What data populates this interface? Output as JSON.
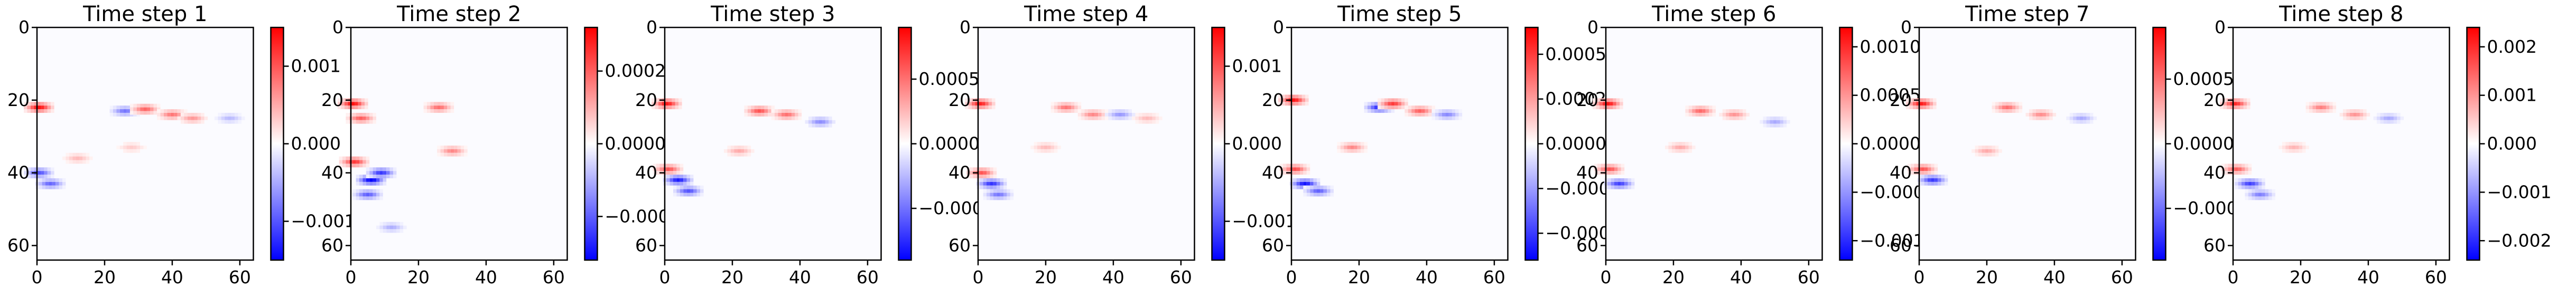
{
  "chart_data": [
    {
      "type": "heatmap",
      "title": "Time step 1",
      "xlabel": "",
      "ylabel": "",
      "x_ticks": [
        "0",
        "20",
        "40",
        "60"
      ],
      "y_ticks": [
        "0",
        "20",
        "40",
        "60"
      ],
      "xlim": [
        0,
        64
      ],
      "ylim": [
        64,
        0
      ],
      "colormap": "bwr",
      "colorbar": {
        "vmin": -0.0015,
        "vmax": 0.0015,
        "ticks": [
          {
            "value": 0.001,
            "label": "0.001"
          },
          {
            "value": 0.0,
            "label": "0.000"
          },
          {
            "value": -0.001,
            "label": "−0.001"
          }
        ]
      },
      "features": [
        {
          "x": 0.6,
          "y": 22.0,
          "value": 0.0014
        },
        {
          "x": 0.6,
          "y": 40.0,
          "value": -0.001
        },
        {
          "x": 4.0,
          "y": 43.0,
          "value": -0.0009
        },
        {
          "x": 26.0,
          "y": 23.0,
          "value": -0.0008
        },
        {
          "x": 32.0,
          "y": 22.5,
          "value": 0.0009
        },
        {
          "x": 40.0,
          "y": 24.0,
          "value": 0.0008
        },
        {
          "x": 46.0,
          "y": 25.0,
          "value": 0.0006
        },
        {
          "x": 57.0,
          "y": 25.0,
          "value": -0.0004
        },
        {
          "x": 12.0,
          "y": 36.0,
          "value": 0.0004
        },
        {
          "x": 28.0,
          "y": 33.0,
          "value": 0.0003
        }
      ]
    },
    {
      "type": "heatmap",
      "title": "Time step 2",
      "xlabel": "",
      "ylabel": "",
      "x_ticks": [
        "0",
        "20",
        "40",
        "60"
      ],
      "y_ticks": [
        "0",
        "20",
        "40",
        "60"
      ],
      "xlim": [
        0,
        64
      ],
      "ylim": [
        64,
        0
      ],
      "colormap": "bwr",
      "colorbar": {
        "vmin": -0.00032,
        "vmax": 0.00032,
        "ticks": [
          {
            "value": 0.0002,
            "label": "0.0002"
          },
          {
            "value": 0.0,
            "label": "0.0000"
          },
          {
            "value": -0.0002,
            "label": "−0.0002"
          }
        ]
      },
      "features": [
        {
          "x": 0.6,
          "y": 21.0,
          "value": 0.0003
        },
        {
          "x": 3.0,
          "y": 25.0,
          "value": 0.0002
        },
        {
          "x": 1.0,
          "y": 37.0,
          "value": 0.00025
        },
        {
          "x": 6.0,
          "y": 42.0,
          "value": -0.00032
        },
        {
          "x": 9.0,
          "y": 40.0,
          "value": -0.00025
        },
        {
          "x": 5.0,
          "y": 46.0,
          "value": -0.0002
        },
        {
          "x": 26.0,
          "y": 22.0,
          "value": 0.00018
        },
        {
          "x": 30.0,
          "y": 34.0,
          "value": 0.00015
        },
        {
          "x": 12.0,
          "y": 55.0,
          "value": -0.0001
        }
      ]
    },
    {
      "type": "heatmap",
      "title": "Time step 3",
      "xlabel": "",
      "ylabel": "",
      "x_ticks": [
        "0",
        "20",
        "40",
        "60"
      ],
      "y_ticks": [
        "0",
        "20",
        "40",
        "60"
      ],
      "xlim": [
        0,
        64
      ],
      "ylim": [
        64,
        0
      ],
      "colormap": "bwr",
      "colorbar": {
        "vmin": -0.0009,
        "vmax": 0.0009,
        "ticks": [
          {
            "value": 0.0005,
            "label": "0.0005"
          },
          {
            "value": 0.0,
            "label": "0.0000"
          },
          {
            "value": -0.0005,
            "label": "−0.0005"
          }
        ]
      },
      "features": [
        {
          "x": 0.6,
          "y": 21.0,
          "value": 0.0008
        },
        {
          "x": 1.0,
          "y": 39.0,
          "value": 0.0006
        },
        {
          "x": 4.0,
          "y": 42.0,
          "value": -0.0008
        },
        {
          "x": 7.0,
          "y": 45.0,
          "value": -0.0006
        },
        {
          "x": 28.0,
          "y": 23.0,
          "value": 0.0006
        },
        {
          "x": 36.0,
          "y": 24.0,
          "value": 0.0005
        },
        {
          "x": 46.0,
          "y": 26.0,
          "value": -0.0004
        },
        {
          "x": 22.0,
          "y": 34.0,
          "value": 0.0003
        }
      ]
    },
    {
      "type": "heatmap",
      "title": "Time step 4",
      "xlabel": "",
      "ylabel": "",
      "x_ticks": [
        "0",
        "20",
        "40",
        "60"
      ],
      "y_ticks": [
        "0",
        "20",
        "40",
        "60"
      ],
      "xlim": [
        0,
        64
      ],
      "ylim": [
        64,
        0
      ],
      "colormap": "bwr",
      "colorbar": {
        "vmin": -0.0015,
        "vmax": 0.0015,
        "ticks": [
          {
            "value": 0.001,
            "label": "0.001"
          },
          {
            "value": 0.0,
            "label": "0.000"
          },
          {
            "value": -0.001,
            "label": "−0.001"
          }
        ]
      },
      "features": [
        {
          "x": 0.6,
          "y": 21.0,
          "value": 0.0013
        },
        {
          "x": 1.0,
          "y": 40.0,
          "value": 0.001
        },
        {
          "x": 4.0,
          "y": 43.0,
          "value": -0.0012
        },
        {
          "x": 6.0,
          "y": 46.0,
          "value": -0.0008
        },
        {
          "x": 26.0,
          "y": 22.0,
          "value": 0.0008
        },
        {
          "x": 34.0,
          "y": 24.0,
          "value": 0.0007
        },
        {
          "x": 42.0,
          "y": 24.0,
          "value": -0.0006
        },
        {
          "x": 50.0,
          "y": 25.0,
          "value": 0.0004
        },
        {
          "x": 20.0,
          "y": 33.0,
          "value": 0.0004
        }
      ]
    },
    {
      "type": "heatmap",
      "title": "Time step 5",
      "xlabel": "",
      "ylabel": "",
      "x_ticks": [
        "0",
        "20",
        "40",
        "60"
      ],
      "y_ticks": [
        "0",
        "20",
        "40",
        "60"
      ],
      "xlim": [
        0,
        64
      ],
      "ylim": [
        64,
        0
      ],
      "colormap": "bwr",
      "colorbar": {
        "vmin": -0.00065,
        "vmax": 0.00065,
        "ticks": [
          {
            "value": 0.0005,
            "label": "0.00050"
          },
          {
            "value": 0.00025,
            "label": "0.00025"
          },
          {
            "value": 0.0,
            "label": "0.00000"
          },
          {
            "value": -0.00025,
            "label": "−0.00025"
          },
          {
            "value": -0.0005,
            "label": "−0.00050"
          }
        ]
      },
      "features": [
        {
          "x": 0.6,
          "y": 20.0,
          "value": 0.0006
        },
        {
          "x": 1.0,
          "y": 39.0,
          "value": 0.00045
        },
        {
          "x": 4.0,
          "y": 43.0,
          "value": -0.0006
        },
        {
          "x": 8.0,
          "y": 45.0,
          "value": -0.0004
        },
        {
          "x": 26.0,
          "y": 22.0,
          "value": -0.00055
        },
        {
          "x": 30.0,
          "y": 21.0,
          "value": 0.0005
        },
        {
          "x": 38.0,
          "y": 23.0,
          "value": 0.0004
        },
        {
          "x": 46.0,
          "y": 24.0,
          "value": -0.0003
        },
        {
          "x": 18.0,
          "y": 33.0,
          "value": 0.0003
        }
      ]
    },
    {
      "type": "heatmap",
      "title": "Time step 6",
      "xlabel": "",
      "ylabel": "",
      "x_ticks": [
        "0",
        "20",
        "40",
        "60"
      ],
      "y_ticks": [
        "0",
        "20",
        "40",
        "60"
      ],
      "xlim": [
        0,
        64
      ],
      "ylim": [
        64,
        0
      ],
      "colormap": "bwr",
      "colorbar": {
        "vmin": -0.0012,
        "vmax": 0.0012,
        "ticks": [
          {
            "value": 0.001,
            "label": "0.0010"
          },
          {
            "value": 0.0005,
            "label": "0.0005"
          },
          {
            "value": 0.0,
            "label": "0.0000"
          },
          {
            "value": -0.0005,
            "label": "−0.0005"
          },
          {
            "value": -0.001,
            "label": "−0.0010"
          }
        ]
      },
      "features": [
        {
          "x": 0.6,
          "y": 21.0,
          "value": 0.0011
        },
        {
          "x": 1.0,
          "y": 39.0,
          "value": 0.0008
        },
        {
          "x": 4.0,
          "y": 43.0,
          "value": -0.0009
        },
        {
          "x": 28.0,
          "y": 23.0,
          "value": 0.0007
        },
        {
          "x": 38.0,
          "y": 24.0,
          "value": 0.0005
        },
        {
          "x": 50.0,
          "y": 26.0,
          "value": -0.0004
        },
        {
          "x": 22.0,
          "y": 33.0,
          "value": 0.0004
        }
      ]
    },
    {
      "type": "heatmap",
      "title": "Time step 7",
      "xlabel": "",
      "ylabel": "",
      "x_ticks": [
        "0",
        "20",
        "40",
        "60"
      ],
      "y_ticks": [
        "0",
        "20",
        "40",
        "60"
      ],
      "xlim": [
        0,
        64
      ],
      "ylim": [
        64,
        0
      ],
      "colormap": "bwr",
      "colorbar": {
        "vmin": -0.0009,
        "vmax": 0.0009,
        "ticks": [
          {
            "value": 0.0005,
            "label": "0.0005"
          },
          {
            "value": 0.0,
            "label": "0.0000"
          },
          {
            "value": -0.0005,
            "label": "−0.0005"
          }
        ]
      },
      "features": [
        {
          "x": 0.6,
          "y": 21.0,
          "value": 0.0008
        },
        {
          "x": 1.0,
          "y": 39.0,
          "value": 0.0006
        },
        {
          "x": 4.0,
          "y": 42.0,
          "value": -0.0007
        },
        {
          "x": 26.0,
          "y": 22.0,
          "value": 0.0005
        },
        {
          "x": 36.0,
          "y": 24.0,
          "value": 0.0004
        },
        {
          "x": 48.0,
          "y": 25.0,
          "value": -0.0003
        },
        {
          "x": 20.0,
          "y": 34.0,
          "value": 0.0003
        }
      ]
    },
    {
      "type": "heatmap",
      "title": "Time step 8",
      "xlabel": "",
      "ylabel": "",
      "x_ticks": [
        "0",
        "20",
        "40",
        "60"
      ],
      "y_ticks": [
        "0",
        "20",
        "40",
        "60"
      ],
      "xlim": [
        0,
        64
      ],
      "ylim": [
        64,
        0
      ],
      "colormap": "bwr",
      "colorbar": {
        "vmin": -0.0024,
        "vmax": 0.0024,
        "ticks": [
          {
            "value": 0.002,
            "label": "0.002"
          },
          {
            "value": 0.001,
            "label": "0.001"
          },
          {
            "value": 0.0,
            "label": "0.000"
          },
          {
            "value": -0.001,
            "label": "−0.001"
          },
          {
            "value": -0.002,
            "label": "−0.002"
          }
        ]
      },
      "features": [
        {
          "x": 0.6,
          "y": 21.0,
          "value": 0.002
        },
        {
          "x": 1.0,
          "y": 39.0,
          "value": 0.0015
        },
        {
          "x": 5.0,
          "y": 43.0,
          "value": -0.0018
        },
        {
          "x": 8.0,
          "y": 46.0,
          "value": -0.0012
        },
        {
          "x": 26.0,
          "y": 22.0,
          "value": 0.0012
        },
        {
          "x": 36.0,
          "y": 24.0,
          "value": 0.001
        },
        {
          "x": 46.0,
          "y": 25.0,
          "value": -0.0008
        },
        {
          "x": 18.0,
          "y": 33.0,
          "value": 0.0007
        }
      ]
    }
  ]
}
